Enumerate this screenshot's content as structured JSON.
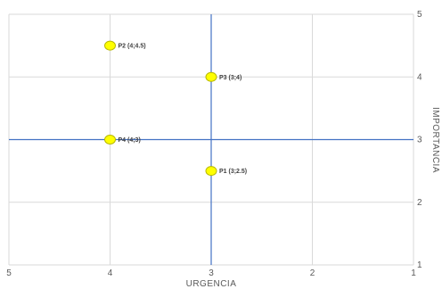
{
  "chart_data": {
    "type": "scatter",
    "title": "",
    "xlabel": "URGENCIA",
    "ylabel": "IMPORTANCIA",
    "xlim": [
      1,
      5
    ],
    "ylim": [
      1,
      5
    ],
    "x_reversed": true,
    "x_ticks": [
      "5",
      "4",
      "3",
      "2",
      "1"
    ],
    "y_ticks": [
      "5",
      "4",
      "3",
      "2",
      "1"
    ],
    "crosshair": {
      "x": 3,
      "y": 3
    },
    "grid": true,
    "points": [
      {
        "label": "P1 (3;2.5)",
        "x": 3,
        "y": 2.5
      },
      {
        "label": "P2 (4;4.5)",
        "x": 4,
        "y": 4.5
      },
      {
        "label": "P3 (3;4)",
        "x": 3,
        "y": 4
      },
      {
        "label": "P4 (4;3)",
        "x": 4,
        "y": 3
      }
    ],
    "colors": {
      "marker_fill": "#ffff00",
      "marker_stroke": "#b8b800",
      "crosshair": "#4472c4",
      "grid": "#d9d9d9"
    }
  }
}
